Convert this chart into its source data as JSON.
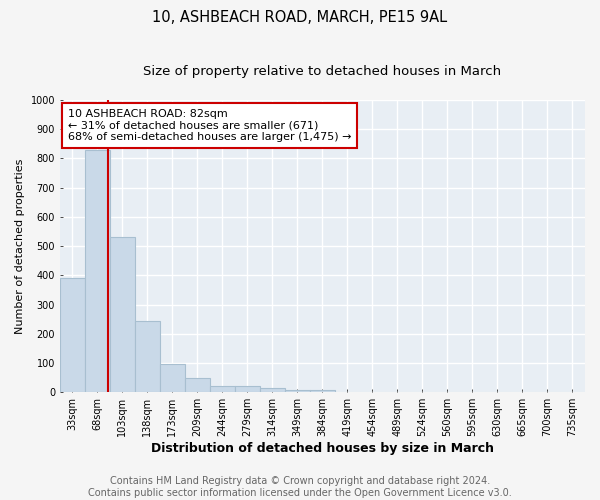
{
  "title": "10, ASHBEACH ROAD, MARCH, PE15 9AL",
  "subtitle": "Size of property relative to detached houses in March",
  "xlabel": "Distribution of detached houses by size in March",
  "ylabel": "Number of detached properties",
  "bar_labels": [
    "33sqm",
    "68sqm",
    "103sqm",
    "138sqm",
    "173sqm",
    "209sqm",
    "244sqm",
    "279sqm",
    "314sqm",
    "349sqm",
    "384sqm",
    "419sqm",
    "454sqm",
    "489sqm",
    "524sqm",
    "560sqm",
    "595sqm",
    "630sqm",
    "665sqm",
    "700sqm",
    "735sqm"
  ],
  "bar_values": [
    390,
    830,
    530,
    245,
    97,
    50,
    22,
    22,
    15,
    8,
    8,
    0,
    0,
    0,
    0,
    0,
    0,
    0,
    0,
    0,
    0
  ],
  "bar_color": "#c9d9e8",
  "bar_edge_color": "#a8bfd0",
  "bar_edge_width": 0.8,
  "red_line_x": 1.41,
  "annotation_text": "10 ASHBEACH ROAD: 82sqm\n← 31% of detached houses are smaller (671)\n68% of semi-detached houses are larger (1,475) →",
  "annotation_box_color": "#ffffff",
  "annotation_box_edge_color": "#cc0000",
  "ylim": [
    0,
    1000
  ],
  "yticks": [
    0,
    100,
    200,
    300,
    400,
    500,
    600,
    700,
    800,
    900,
    1000
  ],
  "plot_bg_color": "#e8eef4",
  "fig_bg_color": "#f5f5f5",
  "grid_color": "#ffffff",
  "footer_line1": "Contains HM Land Registry data © Crown copyright and database right 2024.",
  "footer_line2": "Contains public sector information licensed under the Open Government Licence v3.0.",
  "title_fontsize": 10.5,
  "subtitle_fontsize": 9.5,
  "xlabel_fontsize": 9,
  "ylabel_fontsize": 8,
  "tick_fontsize": 7,
  "annotation_fontsize": 8,
  "footer_fontsize": 7
}
